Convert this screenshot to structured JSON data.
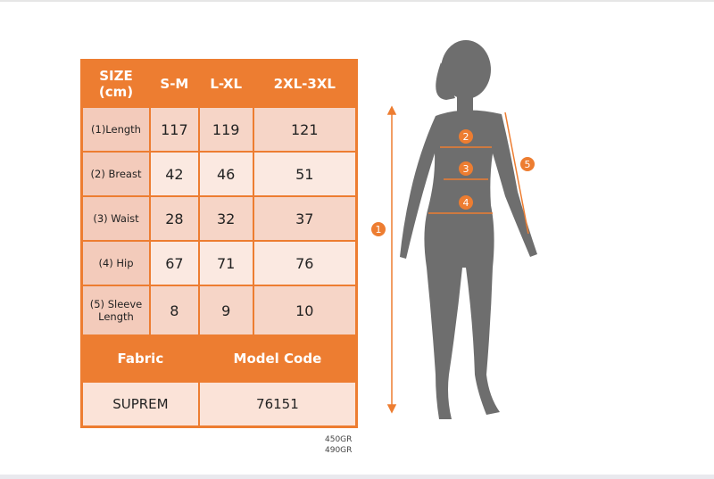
{
  "table": {
    "header": [
      "SIZE\n(cm)",
      "S-M",
      "L-XL",
      "2XL-3XL"
    ],
    "header_line1": "SIZE",
    "header_line2": "(cm)",
    "rows": [
      {
        "label": "(1)Length",
        "values": [
          "117",
          "119",
          "121"
        ]
      },
      {
        "label": "(2) Breast",
        "values": [
          "42",
          "46",
          "51"
        ]
      },
      {
        "label": "(3) Waist",
        "values": [
          "28",
          "32",
          "37"
        ]
      },
      {
        "label": "(4) Hip",
        "values": [
          "67",
          "71",
          "76"
        ]
      },
      {
        "label": "(5) Sleeve Length",
        "label1": "(5) Sleeve",
        "label2": "Length",
        "values": [
          "8",
          "9",
          "10"
        ]
      }
    ],
    "fabric_label": "Fabric",
    "model_code_label": "Model Code",
    "fabric_value": "SUPREM",
    "model_code_value": "76151"
  },
  "weights": [
    "450GR",
    "490GR"
  ],
  "markers": [
    "1",
    "2",
    "3",
    "4",
    "5"
  ],
  "colors": {
    "accent": "#ed7d31",
    "silhouette": "#6e6e6e"
  }
}
